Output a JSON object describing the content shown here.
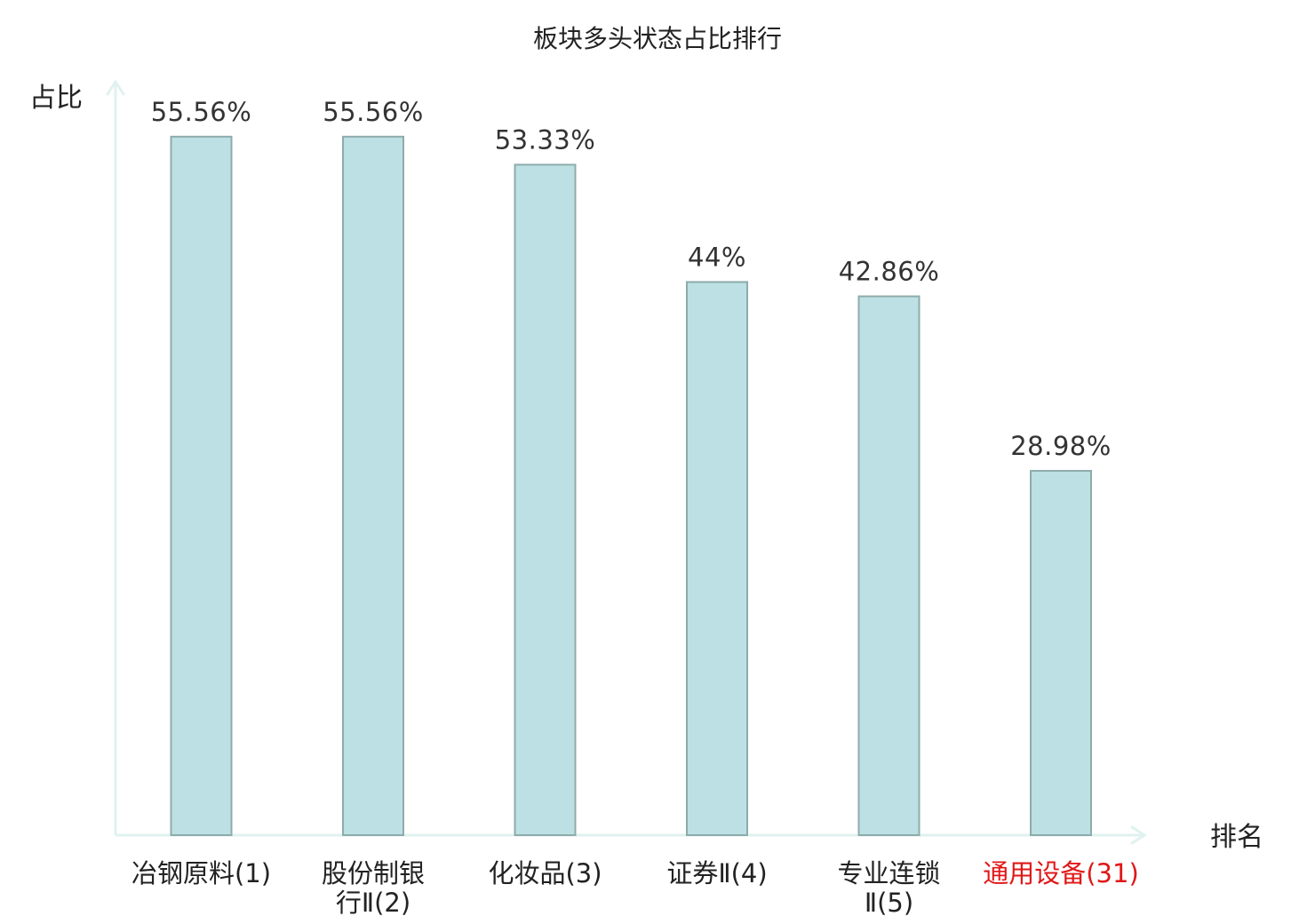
{
  "chart_data": {
    "type": "bar",
    "title": "板块多头状态占比排行",
    "xlabel": "排名",
    "ylabel": "占比",
    "categories": [
      {
        "lines": [
          "冶钢原料(1)"
        ],
        "highlight": false
      },
      {
        "lines": [
          "股份制银",
          "行Ⅱ(2)"
        ],
        "highlight": false
      },
      {
        "lines": [
          "化妆品(3)"
        ],
        "highlight": false
      },
      {
        "lines": [
          "证券Ⅱ(4)"
        ],
        "highlight": false
      },
      {
        "lines": [
          "专业连锁",
          "Ⅱ(5)"
        ],
        "highlight": false
      },
      {
        "lines": [
          "通用设备(31)"
        ],
        "highlight": true
      }
    ],
    "values": [
      55.56,
      55.56,
      53.33,
      44,
      42.86,
      28.98
    ],
    "value_labels": [
      "55.56%",
      "55.56%",
      "53.33%",
      "44%",
      "42.86%",
      "28.98%"
    ],
    "ylim": [
      0,
      60
    ],
    "grid": false,
    "colors": {
      "bar_fill": "#bce0e3",
      "bar_stroke": "#8fabab",
      "axis": "#dff2ef",
      "highlight_text": "#e01818",
      "normal_text": "#222222"
    }
  }
}
